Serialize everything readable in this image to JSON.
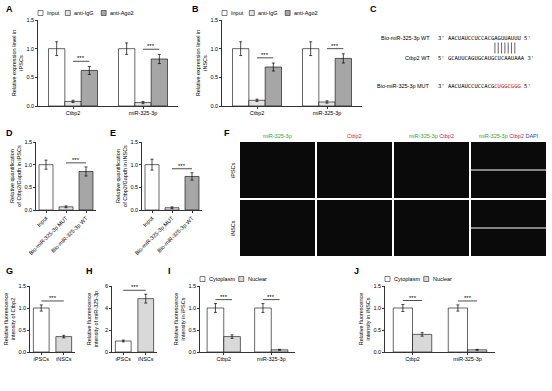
{
  "chart_data": [
    {
      "panel": "A",
      "type": "bar",
      "y_label": "Relative expression level in iPSCs",
      "categories": [
        "Ctbp2",
        "miR-325-3p"
      ],
      "series": [
        {
          "name": "Input",
          "color": "#ffffff",
          "values": [
            1.0,
            1.0
          ],
          "errors": [
            0.12,
            0.1
          ]
        },
        {
          "name": "anti-IgG",
          "color": "#e3e3e3",
          "values": [
            0.08,
            0.06
          ],
          "errors": [
            0.02,
            0.02
          ]
        },
        {
          "name": "anti-Ago2",
          "color": "#a6a6a6",
          "values": [
            0.62,
            0.82
          ],
          "errors": [
            0.07,
            0.08
          ]
        }
      ],
      "ylim": [
        0,
        1.5
      ],
      "yticks": [
        {
          "value": 0,
          "label": "0.0"
        },
        {
          "value": 0.5,
          "label": "0.5"
        },
        {
          "value": 1,
          "label": "1.0"
        },
        {
          "value": 1.5,
          "label": "1.5"
        }
      ],
      "legend": "top",
      "annotations": [
        {
          "text": "***",
          "x": "Ctbp2"
        },
        {
          "text": "***",
          "x": "miR-325-3p"
        }
      ]
    },
    {
      "panel": "B",
      "type": "bar",
      "y_label": "Relative expression level in iNSCs",
      "categories": [
        "Ctbp2",
        "miR-325-3p"
      ],
      "series": [
        {
          "name": "Input",
          "color": "#ffffff",
          "values": [
            1.0,
            1.0
          ],
          "errors": [
            0.12,
            0.12
          ]
        },
        {
          "name": "anti-IgG",
          "color": "#e3e3e3",
          "values": [
            0.1,
            0.07
          ],
          "errors": [
            0.02,
            0.02
          ]
        },
        {
          "name": "anti-Ago2",
          "color": "#a6a6a6",
          "values": [
            0.68,
            0.83
          ],
          "errors": [
            0.07,
            0.08
          ]
        }
      ],
      "ylim": [
        0,
        1.5
      ],
      "yticks": [
        {
          "value": 0,
          "label": "0.0"
        },
        {
          "value": 0.5,
          "label": "0.5"
        },
        {
          "value": 1,
          "label": "1.0"
        },
        {
          "value": 1.5,
          "label": "1.5"
        }
      ],
      "legend": "top",
      "annotations": [
        {
          "text": "***",
          "x": "Ctbp2"
        },
        {
          "text": "***",
          "x": "miR-325-3p"
        }
      ]
    },
    {
      "panel": "D",
      "type": "bar",
      "y_label": "Relative quantification of Ctbp2/Gapdh in iPSCs",
      "categories": [
        "Input",
        "Bio-miR-325-3p MUT",
        "Bio-miR-325-3p WT"
      ],
      "values": [
        1.0,
        0.07,
        0.85
      ],
      "errors": [
        0.1,
        0.02,
        0.1
      ],
      "colors": [
        "#ffffff",
        "#e3e3e3",
        "#a6a6a6"
      ],
      "ylim": [
        0,
        1.5
      ],
      "yticks": [
        {
          "value": 0,
          "label": "0.0"
        },
        {
          "value": 0.5,
          "label": "0.5"
        },
        {
          "value": 1,
          "label": "1.0"
        },
        {
          "value": 1.5,
          "label": "1.5"
        }
      ],
      "annotations": [
        {
          "text": "***",
          "x": [
            "Bio-miR-325-3p MUT",
            "Bio-miR-325-3p WT"
          ]
        }
      ]
    },
    {
      "panel": "E",
      "type": "bar",
      "y_label": "Relative quantification of Ctbp2/Gapdh in iNSCs",
      "categories": [
        "Input",
        "Bio-miR-325-3p MUT",
        "Bio-miR-325-3p WT"
      ],
      "values": [
        1.0,
        0.05,
        0.74
      ],
      "errors": [
        0.12,
        0.02,
        0.08
      ],
      "colors": [
        "#ffffff",
        "#e3e3e3",
        "#a6a6a6"
      ],
      "ylim": [
        0,
        1.5
      ],
      "yticks": [
        {
          "value": 0,
          "label": "0.0"
        },
        {
          "value": 0.5,
          "label": "0.5"
        },
        {
          "value": 1,
          "label": "1.0"
        },
        {
          "value": 1.5,
          "label": "1.5"
        }
      ],
      "annotations": [
        {
          "text": "***",
          "x": [
            "Bio-miR-325-3p MUT",
            "Bio-miR-325-3p WT"
          ]
        }
      ]
    },
    {
      "panel": "G",
      "type": "bar",
      "y_label": "Relative fluorescence intensity of Ctbp2",
      "categories": [
        "iPSCs",
        "iNSCs"
      ],
      "values": [
        1.0,
        0.35
      ],
      "errors": [
        0.07,
        0.03
      ],
      "colors": [
        "#ffffff",
        "#d9d9d9"
      ],
      "ylim": [
        0,
        1.5
      ],
      "yticks": [
        {
          "value": 0,
          "label": "0.0"
        },
        {
          "value": 0.5,
          "label": "0.5"
        },
        {
          "value": 1,
          "label": "1.0"
        },
        {
          "value": 1.5,
          "label": "1.5"
        }
      ],
      "annotations": [
        {
          "text": "***",
          "x": [
            "iPSCs",
            "iNSCs"
          ]
        }
      ]
    },
    {
      "panel": "H",
      "type": "bar",
      "y_label": "Relative fluorescence intensity of miR-325-3p",
      "categories": [
        "iPSCs",
        "iNSCs"
      ],
      "values": [
        1.0,
        4.85
      ],
      "errors": [
        0.08,
        0.4
      ],
      "colors": [
        "#ffffff",
        "#d9d9d9"
      ],
      "ylim": [
        0,
        6
      ],
      "yticks": [
        0,
        2,
        4,
        6
      ],
      "annotations": [
        {
          "text": "***",
          "x": [
            "iPSCs",
            "iNSCs"
          ]
        }
      ]
    },
    {
      "panel": "I",
      "type": "bar",
      "y_label": "Relative fluorescence intensity in iPSCs",
      "categories": [
        "Ctbp2",
        "miR-325-3p"
      ],
      "series": [
        {
          "name": "Cytoplasm",
          "color": "#ffffff",
          "values": [
            1.0,
            1.0
          ],
          "errors": [
            0.1,
            0.1
          ]
        },
        {
          "name": "Nuclear",
          "color": "#d9d9d9",
          "values": [
            0.35,
            0.05
          ],
          "errors": [
            0.04,
            0.01
          ]
        }
      ],
      "ylim": [
        0,
        1.5
      ],
      "yticks": [
        {
          "value": 0,
          "label": "0.0"
        },
        {
          "value": 0.5,
          "label": "0.5"
        },
        {
          "value": 1,
          "label": "1.0"
        },
        {
          "value": 1.5,
          "label": "1.5"
        }
      ],
      "legend": "top",
      "annotations": [
        {
          "text": "***",
          "x": "Ctbp2"
        },
        {
          "text": "***",
          "x": "miR-325-3p"
        }
      ]
    },
    {
      "panel": "J",
      "type": "bar",
      "y_label": "Relative fluorescence intensity in iNSCs",
      "categories": [
        "Ctbp2",
        "miR-325-3p"
      ],
      "series": [
        {
          "name": "Cytoplasm",
          "color": "#ffffff",
          "values": [
            1.0,
            1.0
          ],
          "errors": [
            0.08,
            0.07
          ]
        },
        {
          "name": "Nuclear",
          "color": "#d9d9d9",
          "values": [
            0.4,
            0.05
          ],
          "errors": [
            0.04,
            0.01
          ]
        }
      ],
      "ylim": [
        0,
        1.5
      ],
      "yticks": [
        {
          "value": 0,
          "label": "0.0"
        },
        {
          "value": 0.5,
          "label": "0.5"
        },
        {
          "value": 1,
          "label": "1.0"
        },
        {
          "value": 1.5,
          "label": "1.5"
        }
      ],
      "legend": "top",
      "annotations": [
        {
          "text": "***",
          "x": "Ctbp2"
        },
        {
          "text": "***",
          "x": "miR-325-3p"
        }
      ]
    }
  ],
  "sequence_panel": {
    "panel": "C",
    "rows": [
      {
        "name": "Bio-miR-325-3p WT",
        "left": "3'",
        "seq": "AACUAUCCUCCACGAGUUAUUU",
        "right": "5'"
      },
      {
        "name": "Ctbp2 WT",
        "left": "5'",
        "seq": "GCAUUCAGUGCAUGCUCAAUAAA",
        "right": "3'"
      },
      {
        "name": "Bio-miR-325-3p MUT",
        "left": "3'",
        "seq": "AACUAUCCUCCACG",
        "mut": "CUGGCGGG",
        "mut_color": "#e00000",
        "right": "5'"
      }
    ]
  },
  "image_panel": {
    "panel": "F",
    "columns": [
      [
        {
          "text": "miR-325-3p",
          "color": "#1fa81f"
        }
      ],
      [
        {
          "text": "Ctbp2",
          "color": "#e02020"
        }
      ],
      [
        {
          "text": "miR-325-3p",
          "color": "#1fa81f"
        },
        {
          "text": "Ctbp2",
          "color": "#e02020"
        }
      ],
      [
        {
          "text": "miR-325-3p",
          "color": "#1fa81f"
        },
        {
          "text": "Ctbp2",
          "color": "#e02020"
        },
        {
          "text": "DAPI",
          "color": "#2040e0"
        }
      ]
    ],
    "rows": [
      "iPSCs",
      "iNSCs"
    ]
  }
}
